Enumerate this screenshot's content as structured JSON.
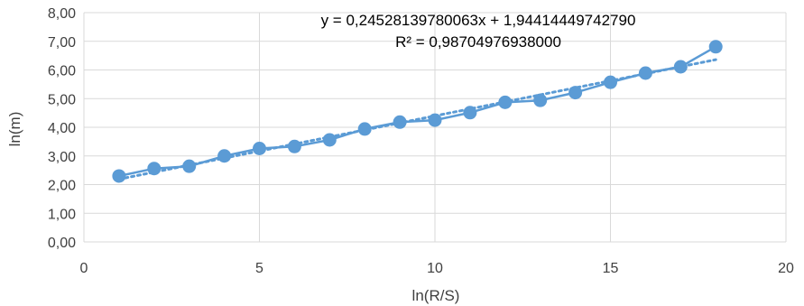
{
  "chart_data": {
    "type": "scatter",
    "xlabel": "ln(R/S)",
    "ylabel": "ln(m)",
    "xlim": [
      0,
      20
    ],
    "ylim": [
      0,
      8
    ],
    "x_ticks": [
      "0",
      "5",
      "10",
      "15",
      "20"
    ],
    "y_ticks": [
      "0,00",
      "1,00",
      "2,00",
      "3,00",
      "4,00",
      "5,00",
      "6,00",
      "7,00",
      "8,00"
    ],
    "grid": true,
    "legend": "none",
    "series": [
      {
        "x": [
          1,
          2,
          3,
          4,
          5,
          6,
          7,
          8,
          9,
          10,
          11,
          12,
          13,
          14,
          15,
          16,
          17,
          18
        ],
        "values": [
          2.3,
          2.56,
          2.64,
          3.0,
          3.26,
          3.33,
          3.56,
          3.94,
          4.18,
          4.25,
          4.51,
          4.87,
          4.94,
          5.21,
          5.57,
          5.89,
          6.11,
          6.81
        ],
        "color": "#5b9bd5",
        "markers": "circle",
        "connected": true
      }
    ],
    "trendline": {
      "type": "linear",
      "slope": 0.24528139780063,
      "intercept": 1.9441444974279,
      "style": "dotted",
      "color": "#5b9bd5",
      "equation": "y = 0,24528139780063x + 1,94414449742790",
      "r_squared": "R² = 0,98704976938000"
    }
  }
}
